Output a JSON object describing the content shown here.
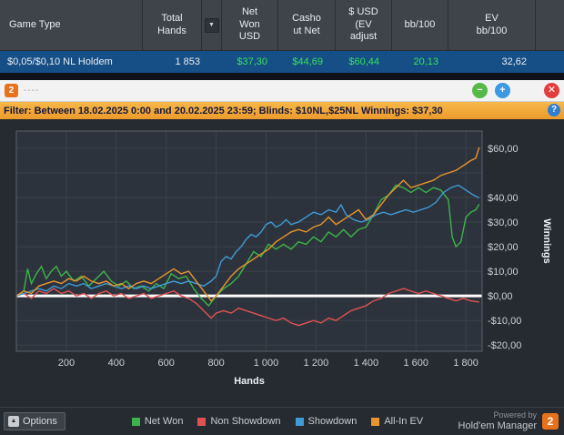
{
  "table": {
    "columns": [
      "Game Type",
      "Total Hands",
      "Net Won USD",
      "Cashout Net",
      "$ USD (EV adjust",
      "bb/100",
      "EV bb/100"
    ],
    "sort_icon": "▼",
    "row": {
      "game_type": "$0,05/$0,10 NL Holdem",
      "total_hands": "1 853",
      "net_won_usd": "$37,30",
      "cashout_net": "$44,69",
      "usd_ev_adjust": "$60,44",
      "bb_100": "20,13",
      "ev_bb_100": "32,62"
    },
    "positive_color": "#35e05a"
  },
  "subwindow": {
    "logo": "2",
    "title": "----",
    "minimize_icon": "−",
    "add_icon": "+",
    "close_icon": "✕"
  },
  "filter_bar": {
    "text": "Filter: Between 18.02.2025 0:00 and 20.02.2025 23:59; Blinds: $10NL,$25NL Winnings: $37,30",
    "help_icon": "?"
  },
  "chart_data": {
    "type": "line",
    "xlabel": "Hands",
    "ylabel": "Winnings",
    "x_max": 1865,
    "ylim": [
      -22.5,
      67
    ],
    "plot_bg": "#2d333c",
    "grid_color": "#3b424b",
    "border_color": "#5a6169",
    "zero_line_color": "#ffffff",
    "grid_y": [
      -20,
      -10,
      0,
      10,
      20,
      30,
      40,
      50,
      60
    ],
    "x_ticks": [
      {
        "v": 200,
        "label": "200"
      },
      {
        "v": 400,
        "label": "400"
      },
      {
        "v": 600,
        "label": "600"
      },
      {
        "v": 800,
        "label": "800"
      },
      {
        "v": 1000,
        "label": "1 000"
      },
      {
        "v": 1200,
        "label": "1 200"
      },
      {
        "v": 1400,
        "label": "1 400"
      },
      {
        "v": 1600,
        "label": "1 600"
      },
      {
        "v": 1800,
        "label": "1 800"
      }
    ],
    "y_ticks": [
      {
        "v": 60,
        "label": "$60,00"
      },
      {
        "v": 40,
        "label": "$40,00"
      },
      {
        "v": 30,
        "label": "$30,00"
      },
      {
        "v": 20,
        "label": "$20,00"
      },
      {
        "v": 10,
        "label": "$10,00"
      },
      {
        "v": 0,
        "label": "$0,00"
      },
      {
        "v": -10,
        "label": "-$10,00"
      },
      {
        "v": -20,
        "label": "-$20,00"
      }
    ],
    "series": [
      {
        "name": "Net Won",
        "color": "#3cb44a",
        "points": [
          [
            0,
            0
          ],
          [
            30,
            2
          ],
          [
            45,
            11
          ],
          [
            60,
            5
          ],
          [
            80,
            9
          ],
          [
            100,
            12
          ],
          [
            120,
            7
          ],
          [
            140,
            10
          ],
          [
            160,
            12
          ],
          [
            180,
            8
          ],
          [
            200,
            10
          ],
          [
            230,
            6
          ],
          [
            260,
            8
          ],
          [
            290,
            4
          ],
          [
            320,
            7
          ],
          [
            350,
            10
          ],
          [
            380,
            6
          ],
          [
            410,
            4
          ],
          [
            440,
            6
          ],
          [
            470,
            3
          ],
          [
            500,
            4
          ],
          [
            530,
            2
          ],
          [
            560,
            5
          ],
          [
            590,
            3
          ],
          [
            620,
            9
          ],
          [
            650,
            7
          ],
          [
            680,
            8
          ],
          [
            710,
            3
          ],
          [
            740,
            -1
          ],
          [
            770,
            -4
          ],
          [
            800,
            0
          ],
          [
            830,
            3
          ],
          [
            860,
            5
          ],
          [
            890,
            8
          ],
          [
            920,
            13
          ],
          [
            950,
            18
          ],
          [
            980,
            16
          ],
          [
            1010,
            21
          ],
          [
            1040,
            19
          ],
          [
            1070,
            21
          ],
          [
            1100,
            19
          ],
          [
            1130,
            22
          ],
          [
            1160,
            21
          ],
          [
            1190,
            24
          ],
          [
            1220,
            22
          ],
          [
            1250,
            26
          ],
          [
            1280,
            24
          ],
          [
            1310,
            27
          ],
          [
            1340,
            24
          ],
          [
            1370,
            27
          ],
          [
            1400,
            28
          ],
          [
            1430,
            33
          ],
          [
            1460,
            39
          ],
          [
            1490,
            41
          ],
          [
            1520,
            45
          ],
          [
            1550,
            44
          ],
          [
            1580,
            42
          ],
          [
            1610,
            44
          ],
          [
            1640,
            42
          ],
          [
            1670,
            44
          ],
          [
            1700,
            43
          ],
          [
            1730,
            39
          ],
          [
            1745,
            24
          ],
          [
            1760,
            20
          ],
          [
            1780,
            22
          ],
          [
            1800,
            32
          ],
          [
            1820,
            34
          ],
          [
            1840,
            35
          ],
          [
            1853,
            37.3
          ]
        ]
      },
      {
        "name": "Non Showdown",
        "color": "#e05252",
        "points": [
          [
            0,
            0
          ],
          [
            30,
            1
          ],
          [
            60,
            -1
          ],
          [
            90,
            2
          ],
          [
            120,
            1
          ],
          [
            150,
            3
          ],
          [
            180,
            1
          ],
          [
            210,
            2
          ],
          [
            240,
            0
          ],
          [
            270,
            1
          ],
          [
            300,
            -1
          ],
          [
            330,
            1
          ],
          [
            360,
            2
          ],
          [
            390,
            0
          ],
          [
            420,
            1
          ],
          [
            450,
            -1
          ],
          [
            480,
            0
          ],
          [
            510,
            1
          ],
          [
            540,
            -1
          ],
          [
            570,
            0
          ],
          [
            600,
            1
          ],
          [
            630,
            2
          ],
          [
            660,
            0
          ],
          [
            690,
            -1
          ],
          [
            720,
            -3
          ],
          [
            750,
            -6
          ],
          [
            780,
            -9
          ],
          [
            800,
            -7
          ],
          [
            830,
            -6
          ],
          [
            860,
            -7
          ],
          [
            890,
            -5
          ],
          [
            920,
            -6
          ],
          [
            950,
            -7
          ],
          [
            980,
            -8
          ],
          [
            1010,
            -9
          ],
          [
            1040,
            -10
          ],
          [
            1070,
            -9
          ],
          [
            1100,
            -11
          ],
          [
            1130,
            -12
          ],
          [
            1160,
            -11
          ],
          [
            1190,
            -10
          ],
          [
            1220,
            -11
          ],
          [
            1250,
            -9
          ],
          [
            1280,
            -10
          ],
          [
            1310,
            -8
          ],
          [
            1340,
            -6
          ],
          [
            1370,
            -5
          ],
          [
            1400,
            -4
          ],
          [
            1430,
            -2
          ],
          [
            1460,
            -1
          ],
          [
            1490,
            1
          ],
          [
            1520,
            2
          ],
          [
            1550,
            3
          ],
          [
            1580,
            2
          ],
          [
            1610,
            1
          ],
          [
            1640,
            2
          ],
          [
            1670,
            1
          ],
          [
            1700,
            0
          ],
          [
            1730,
            -1
          ],
          [
            1760,
            -2
          ],
          [
            1790,
            -1
          ],
          [
            1820,
            -2
          ],
          [
            1853,
            -2.5
          ]
        ]
      },
      {
        "name": "Showdown",
        "color": "#3f9bd8",
        "points": [
          [
            0,
            0
          ],
          [
            30,
            1
          ],
          [
            60,
            2
          ],
          [
            90,
            3
          ],
          [
            120,
            2
          ],
          [
            150,
            4
          ],
          [
            180,
            3
          ],
          [
            210,
            5
          ],
          [
            240,
            4
          ],
          [
            270,
            5
          ],
          [
            300,
            3
          ],
          [
            330,
            4
          ],
          [
            360,
            5
          ],
          [
            390,
            4
          ],
          [
            420,
            3
          ],
          [
            450,
            4
          ],
          [
            480,
            3
          ],
          [
            510,
            4
          ],
          [
            540,
            3
          ],
          [
            570,
            4
          ],
          [
            600,
            5
          ],
          [
            630,
            6
          ],
          [
            660,
            5
          ],
          [
            690,
            6
          ],
          [
            720,
            5
          ],
          [
            750,
            4
          ],
          [
            780,
            6
          ],
          [
            800,
            8
          ],
          [
            820,
            14
          ],
          [
            840,
            16
          ],
          [
            860,
            15
          ],
          [
            880,
            18
          ],
          [
            900,
            20
          ],
          [
            920,
            23
          ],
          [
            940,
            25
          ],
          [
            960,
            24
          ],
          [
            980,
            26
          ],
          [
            1000,
            29
          ],
          [
            1020,
            30
          ],
          [
            1040,
            28
          ],
          [
            1060,
            29
          ],
          [
            1080,
            31
          ],
          [
            1100,
            29
          ],
          [
            1130,
            30
          ],
          [
            1160,
            32
          ],
          [
            1190,
            34
          ],
          [
            1220,
            33
          ],
          [
            1250,
            35
          ],
          [
            1280,
            34
          ],
          [
            1300,
            37
          ],
          [
            1320,
            33
          ],
          [
            1350,
            31
          ],
          [
            1380,
            30
          ],
          [
            1410,
            31
          ],
          [
            1440,
            33
          ],
          [
            1470,
            34
          ],
          [
            1500,
            33
          ],
          [
            1530,
            34
          ],
          [
            1560,
            35
          ],
          [
            1590,
            34
          ],
          [
            1620,
            35
          ],
          [
            1650,
            36
          ],
          [
            1680,
            38
          ],
          [
            1710,
            42
          ],
          [
            1740,
            44
          ],
          [
            1770,
            45
          ],
          [
            1800,
            43
          ],
          [
            1830,
            41
          ],
          [
            1853,
            39.8
          ]
        ]
      },
      {
        "name": "All-In EV",
        "color": "#e8952e",
        "points": [
          [
            0,
            0
          ],
          [
            30,
            2
          ],
          [
            60,
            1
          ],
          [
            90,
            4
          ],
          [
            120,
            5
          ],
          [
            150,
            6
          ],
          [
            180,
            5
          ],
          [
            210,
            7
          ],
          [
            240,
            6
          ],
          [
            270,
            8
          ],
          [
            300,
            6
          ],
          [
            330,
            5
          ],
          [
            360,
            6
          ],
          [
            390,
            4
          ],
          [
            420,
            5
          ],
          [
            450,
            3
          ],
          [
            480,
            5
          ],
          [
            510,
            6
          ],
          [
            540,
            5
          ],
          [
            570,
            7
          ],
          [
            600,
            9
          ],
          [
            630,
            11
          ],
          [
            660,
            9
          ],
          [
            690,
            10
          ],
          [
            720,
            6
          ],
          [
            750,
            2
          ],
          [
            780,
            -2
          ],
          [
            800,
            0
          ],
          [
            830,
            4
          ],
          [
            860,
            8
          ],
          [
            890,
            11
          ],
          [
            920,
            13
          ],
          [
            950,
            15
          ],
          [
            980,
            17
          ],
          [
            1010,
            19
          ],
          [
            1040,
            22
          ],
          [
            1070,
            24
          ],
          [
            1100,
            26
          ],
          [
            1130,
            27
          ],
          [
            1160,
            26
          ],
          [
            1190,
            28
          ],
          [
            1220,
            29
          ],
          [
            1250,
            32
          ],
          [
            1280,
            29
          ],
          [
            1310,
            31
          ],
          [
            1340,
            33
          ],
          [
            1370,
            35
          ],
          [
            1400,
            31
          ],
          [
            1430,
            33
          ],
          [
            1460,
            37
          ],
          [
            1490,
            41
          ],
          [
            1520,
            44
          ],
          [
            1550,
            47
          ],
          [
            1580,
            44
          ],
          [
            1610,
            45
          ],
          [
            1640,
            46
          ],
          [
            1670,
            47
          ],
          [
            1700,
            49
          ],
          [
            1730,
            50
          ],
          [
            1760,
            51
          ],
          [
            1790,
            53
          ],
          [
            1820,
            55
          ],
          [
            1840,
            56
          ],
          [
            1853,
            60.4
          ]
        ]
      }
    ]
  },
  "footer": {
    "options_label": "Options",
    "options_icon": "▲",
    "powered_by": "Powered by",
    "brand": "Hold'em Manager",
    "brand_logo": "2"
  }
}
